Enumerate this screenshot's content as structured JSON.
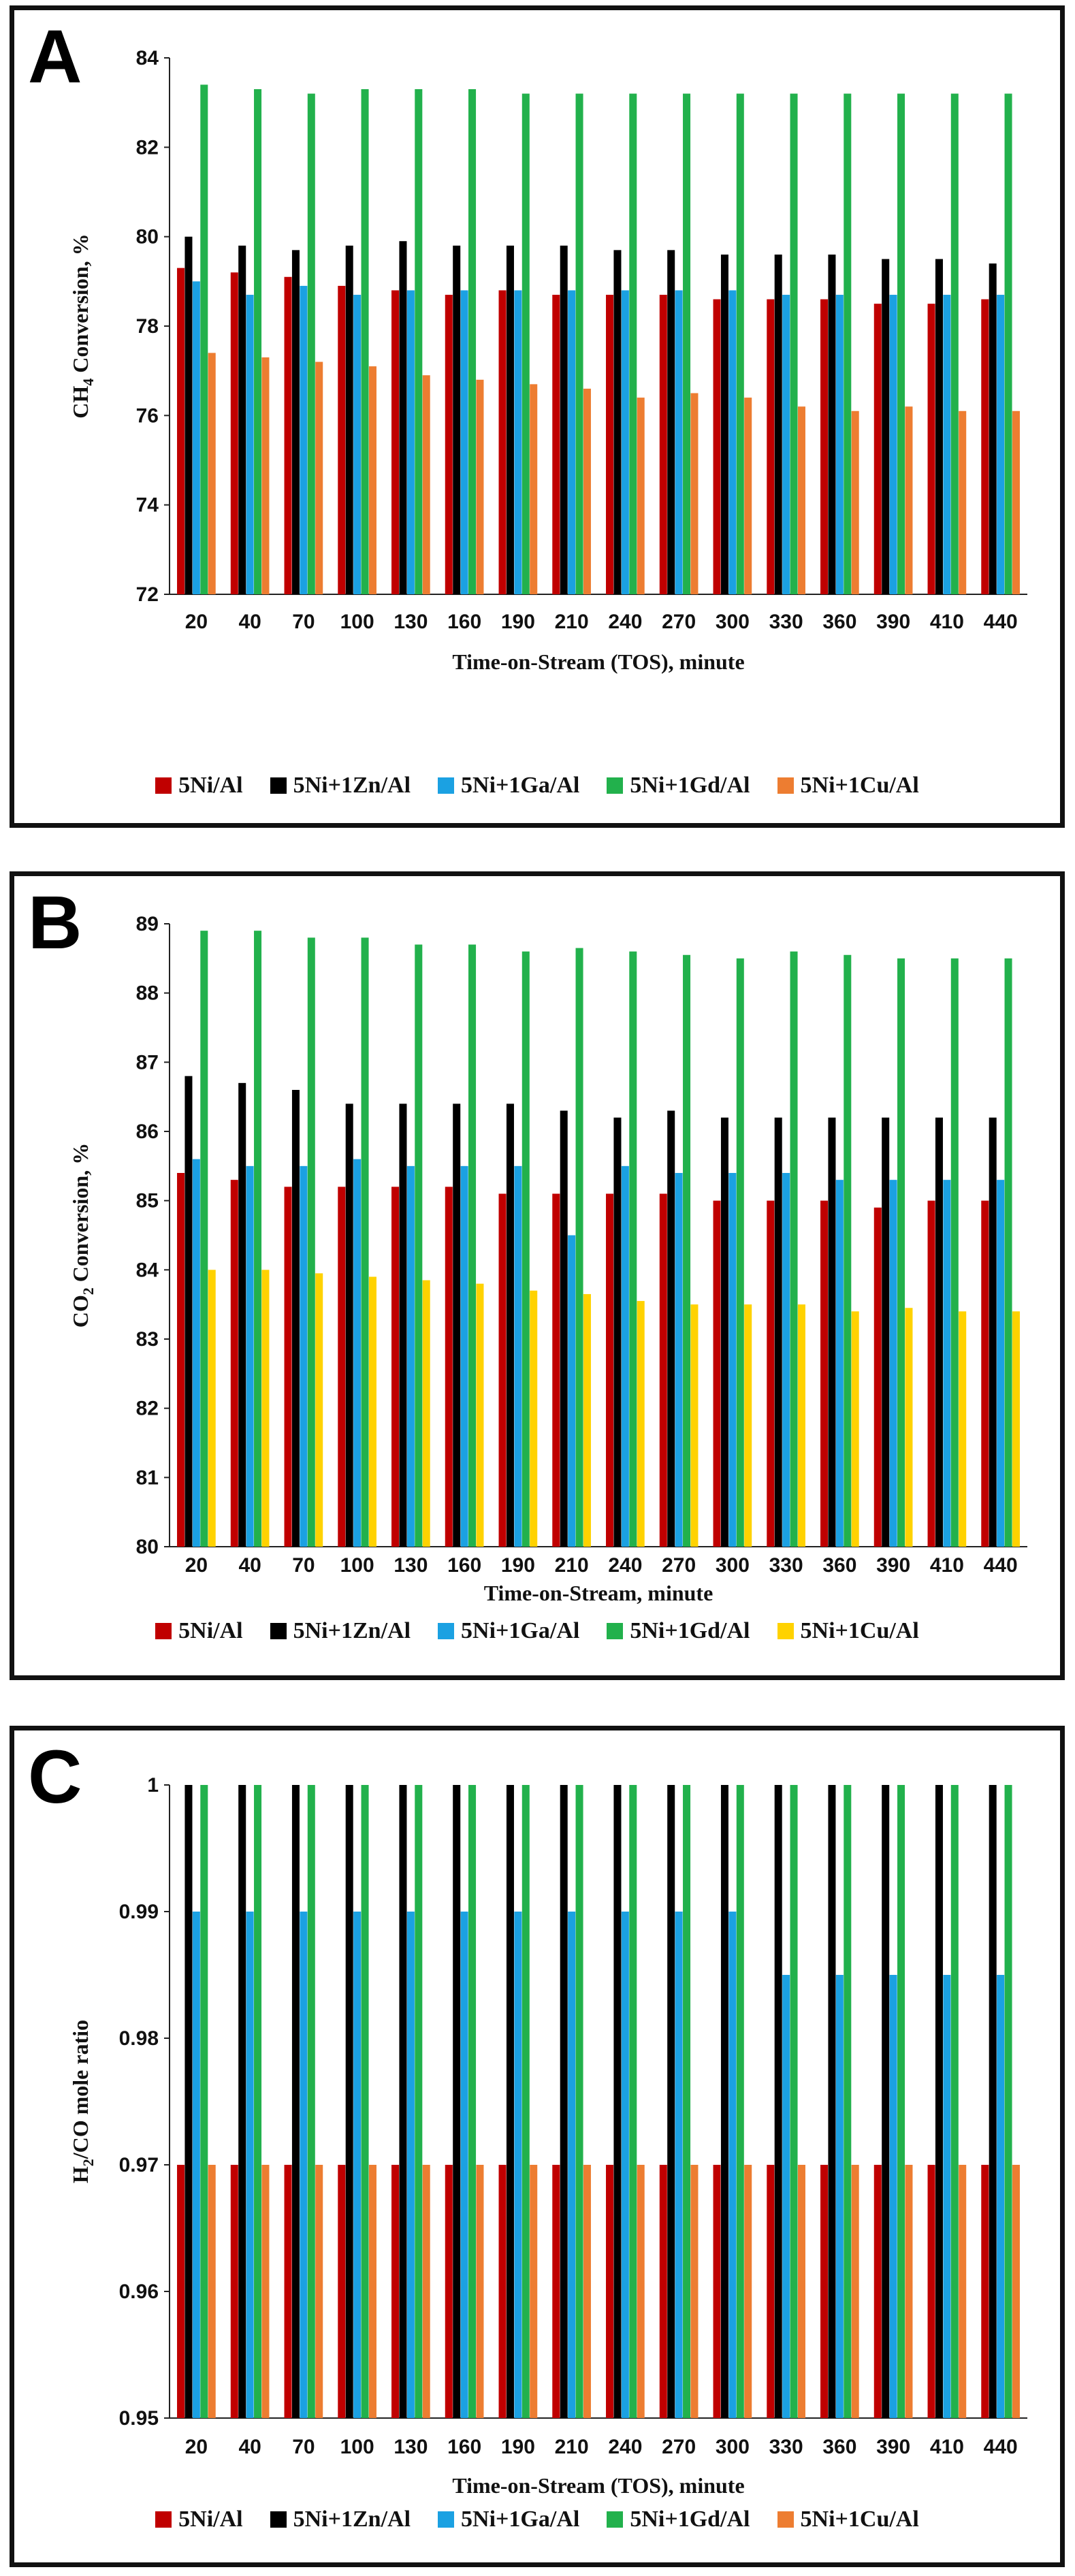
{
  "panels": [
    {
      "letter": "A",
      "chart_data": {
        "type": "bar",
        "categories": [
          "20",
          "40",
          "70",
          "100",
          "130",
          "160",
          "190",
          "210",
          "240",
          "270",
          "300",
          "330",
          "360",
          "390",
          "410",
          "440"
        ],
        "xlabel": "Time-on-Stream (TOS), minute",
        "ylabel_main": "CH",
        "ylabel_sub": "4",
        "ylabel_rest": " Conversion, %",
        "ylim": [
          72,
          84
        ],
        "yticks": [
          "72",
          "74",
          "76",
          "78",
          "80",
          "82",
          "84"
        ],
        "grid": false,
        "legend_position": "bottom",
        "series": [
          {
            "name": "5Ni/Al",
            "color": "#c00000",
            "values": [
              79.3,
              79.2,
              79.1,
              78.9,
              78.8,
              78.7,
              78.8,
              78.7,
              78.7,
              78.7,
              78.6,
              78.6,
              78.6,
              78.5,
              78.5,
              78.6
            ]
          },
          {
            "name": "5Ni+1Zn/Al",
            "color": "#000000",
            "values": [
              80.0,
              79.8,
              79.7,
              79.8,
              79.9,
              79.8,
              79.8,
              79.8,
              79.7,
              79.7,
              79.6,
              79.6,
              79.6,
              79.5,
              79.5,
              79.4
            ]
          },
          {
            "name": "5Ni+1Ga/Al",
            "color": "#1ba1e2",
            "values": [
              79.0,
              78.7,
              78.9,
              78.7,
              78.8,
              78.8,
              78.8,
              78.8,
              78.8,
              78.8,
              78.8,
              78.7,
              78.7,
              78.7,
              78.7,
              78.7
            ]
          },
          {
            "name": "5Ni+1Gd/Al",
            "color": "#22b14c",
            "values": [
              83.4,
              83.3,
              83.2,
              83.3,
              83.3,
              83.3,
              83.2,
              83.2,
              83.2,
              83.2,
              83.2,
              83.2,
              83.2,
              83.2,
              83.2,
              83.2
            ]
          },
          {
            "name": "5Ni+1Cu/Al",
            "color": "#ed7d31",
            "values": [
              77.4,
              77.3,
              77.2,
              77.1,
              76.9,
              76.8,
              76.7,
              76.6,
              76.4,
              76.5,
              76.4,
              76.2,
              76.1,
              76.2,
              76.1,
              76.1
            ]
          }
        ]
      }
    },
    {
      "letter": "B",
      "chart_data": {
        "type": "bar",
        "categories": [
          "20",
          "40",
          "70",
          "100",
          "130",
          "160",
          "190",
          "210",
          "240",
          "270",
          "300",
          "330",
          "360",
          "390",
          "410",
          "440"
        ],
        "xlabel": "Time-on-Stream, minute",
        "ylabel_main": "CO",
        "ylabel_sub": "2",
        "ylabel_rest": " Conversion, %",
        "ylim": [
          80,
          89
        ],
        "yticks": [
          "80",
          "81",
          "82",
          "83",
          "84",
          "85",
          "86",
          "87",
          "88",
          "89"
        ],
        "grid": false,
        "legend_position": "bottom",
        "series": [
          {
            "name": "5Ni/Al",
            "color": "#c00000",
            "values": [
              85.4,
              85.3,
              85.2,
              85.2,
              85.2,
              85.2,
              85.1,
              85.1,
              85.1,
              85.1,
              85.0,
              85.0,
              85.0,
              84.9,
              85.0,
              85.0
            ]
          },
          {
            "name": "5Ni+1Zn/Al",
            "color": "#000000",
            "values": [
              86.8,
              86.7,
              86.6,
              86.4,
              86.4,
              86.4,
              86.4,
              86.3,
              86.2,
              86.3,
              86.2,
              86.2,
              86.2,
              86.2,
              86.2,
              86.2
            ]
          },
          {
            "name": "5Ni+1Ga/Al",
            "color": "#1ba1e2",
            "values": [
              85.6,
              85.5,
              85.5,
              85.6,
              85.5,
              85.5,
              85.5,
              84.5,
              85.5,
              85.4,
              85.4,
              85.4,
              85.3,
              85.3,
              85.3,
              85.3
            ]
          },
          {
            "name": "5Ni+1Gd/Al",
            "color": "#22b14c",
            "values": [
              88.9,
              88.9,
              88.8,
              88.8,
              88.7,
              88.7,
              88.6,
              88.65,
              88.6,
              88.55,
              88.5,
              88.6,
              88.55,
              88.5,
              88.5,
              88.5
            ]
          },
          {
            "name": "5Ni+1Cu/Al",
            "color": "#ffd200",
            "values": [
              84.0,
              84.0,
              83.95,
              83.9,
              83.85,
              83.8,
              83.7,
              83.65,
              83.55,
              83.5,
              83.5,
              83.5,
              83.4,
              83.45,
              83.4,
              83.4
            ]
          }
        ]
      }
    },
    {
      "letter": "C",
      "chart_data": {
        "type": "bar",
        "categories": [
          "20",
          "40",
          "70",
          "100",
          "130",
          "160",
          "190",
          "210",
          "240",
          "270",
          "300",
          "330",
          "360",
          "390",
          "410",
          "440"
        ],
        "xlabel": "Time-on-Stream (TOS), minute",
        "ylabel_main": "H",
        "ylabel_sub": "2",
        "ylabel_rest": "/CO mole ratio",
        "ylim": [
          0.95,
          1
        ],
        "yticks": [
          "0.95",
          "0.96",
          "0.97",
          "0.98",
          "0.99",
          "1"
        ],
        "grid": false,
        "legend_position": "bottom",
        "series": [
          {
            "name": "5Ni/Al",
            "color": "#c00000",
            "values": [
              0.97,
              0.97,
              0.97,
              0.97,
              0.97,
              0.97,
              0.97,
              0.97,
              0.97,
              0.97,
              0.97,
              0.97,
              0.97,
              0.97,
              0.97,
              0.97
            ]
          },
          {
            "name": "5Ni+1Zn/Al",
            "color": "#000000",
            "values": [
              1,
              1,
              1,
              1,
              1,
              1,
              1,
              1,
              1,
              1,
              1,
              1,
              1,
              1,
              1,
              1
            ]
          },
          {
            "name": "5Ni+1Ga/Al",
            "color": "#1ba1e2",
            "values": [
              0.99,
              0.99,
              0.99,
              0.99,
              0.99,
              0.99,
              0.99,
              0.99,
              0.99,
              0.99,
              0.99,
              0.985,
              0.985,
              0.985,
              0.985,
              0.985
            ]
          },
          {
            "name": "5Ni+1Gd/Al",
            "color": "#22b14c",
            "values": [
              1,
              1,
              1,
              1,
              1,
              1,
              1,
              1,
              1,
              1,
              1,
              1,
              1,
              1,
              1,
              1
            ]
          },
          {
            "name": "5Ni+1Cu/Al",
            "color": "#ed7d31",
            "values": [
              0.97,
              0.97,
              0.97,
              0.97,
              0.97,
              0.97,
              0.97,
              0.97,
              0.97,
              0.97,
              0.97,
              0.97,
              0.97,
              0.97,
              0.97,
              0.97
            ]
          }
        ]
      }
    }
  ]
}
